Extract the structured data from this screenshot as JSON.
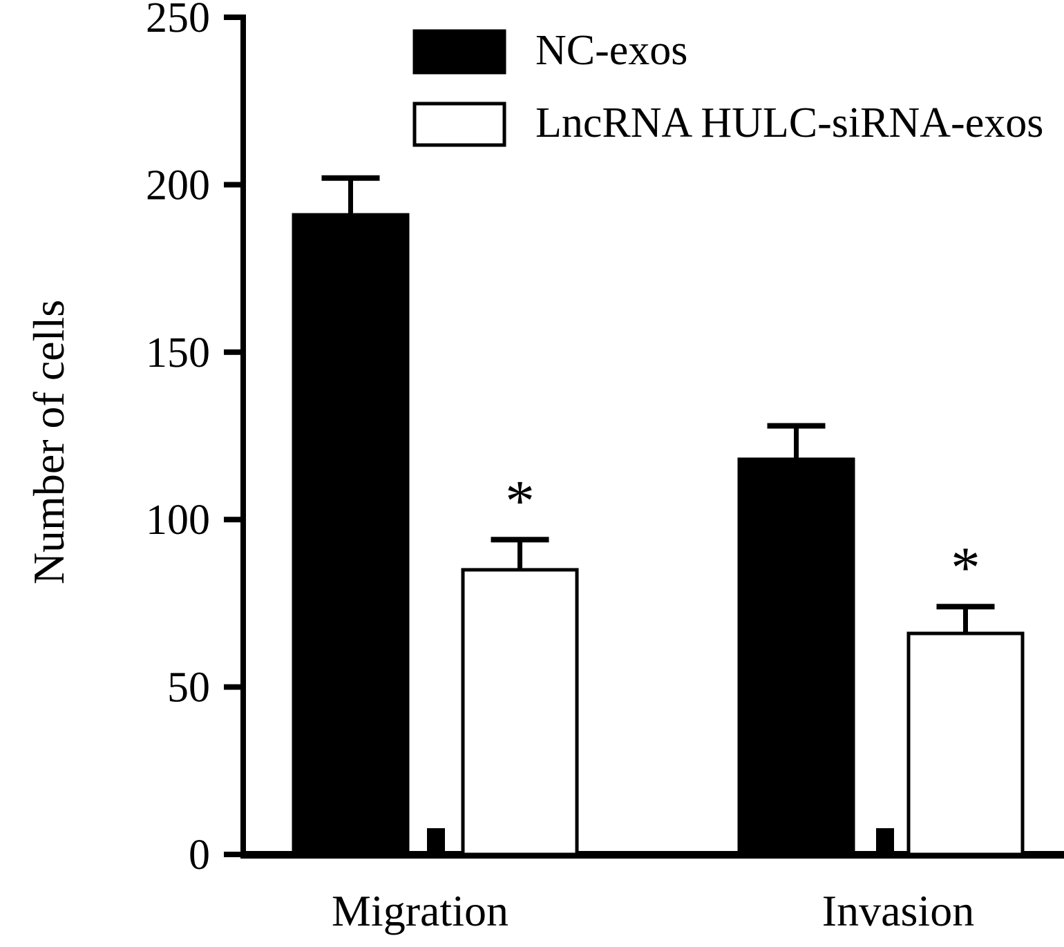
{
  "figure": {
    "background": "#ffffff",
    "axis_color": "#000000"
  },
  "chart_data": {
    "type": "bar",
    "title": "",
    "xlabel": "",
    "ylabel": "Number of cells",
    "categories": [
      "Migration",
      "Invasion"
    ],
    "series": [
      {
        "name": "NC-exos",
        "fill": "#000000",
        "stroke": "#000000",
        "values": [
          191,
          118
        ],
        "errors": [
          11,
          10
        ],
        "significance": [
          "",
          ""
        ]
      },
      {
        "name": "LncRNA HULC-siRNA-exos",
        "fill": "#ffffff",
        "stroke": "#000000",
        "values": [
          85,
          66
        ],
        "errors": [
          9,
          8
        ],
        "significance": [
          "*",
          "*"
        ]
      }
    ],
    "ylim": [
      0,
      250
    ],
    "yticks": [
      0,
      50,
      100,
      150,
      200,
      250
    ],
    "grid": false,
    "legend_position": "top-center",
    "significance_symbol": "*"
  }
}
